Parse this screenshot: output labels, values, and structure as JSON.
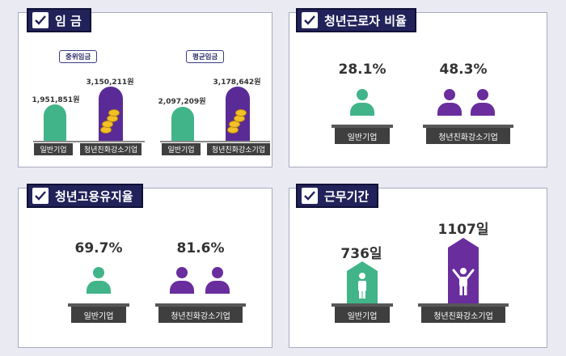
{
  "wage": {
    "title": "임 금",
    "median": {
      "pill": "중위임금",
      "general": {
        "value": "1,951,851원",
        "label": "일반기업"
      },
      "youth": {
        "value": "3,150,211원",
        "label": "청년친화강소기업"
      }
    },
    "average": {
      "pill": "평균임금",
      "general": {
        "value": "2,097,209원",
        "label": "일반기업"
      },
      "youth": {
        "value": "3,178,642원",
        "label": "청년친화강소기업"
      }
    }
  },
  "ratio": {
    "title": "청년근로자 비율",
    "general": {
      "value": "28.1%",
      "label": "일반기업"
    },
    "youth": {
      "value": "48.3%",
      "label": "청년친화강소기업"
    }
  },
  "retention": {
    "title": "청년고용유지율",
    "general": {
      "value": "69.7%",
      "label": "일반기업"
    },
    "youth": {
      "value": "81.6%",
      "label": "청년친화강소기업"
    }
  },
  "tenure": {
    "title": "근무기간",
    "general": {
      "value": "736일",
      "label": "일반기업"
    },
    "youth": {
      "value": "1107일",
      "label": "청년친화강소기업"
    }
  },
  "colors": {
    "navy": "#22225a",
    "green": "#41b48a",
    "purple": "#5a2b96",
    "gold": "#f2c027"
  },
  "icons": [
    "check-icon",
    "person-icon",
    "coin-stack-icon",
    "building-icon"
  ]
}
